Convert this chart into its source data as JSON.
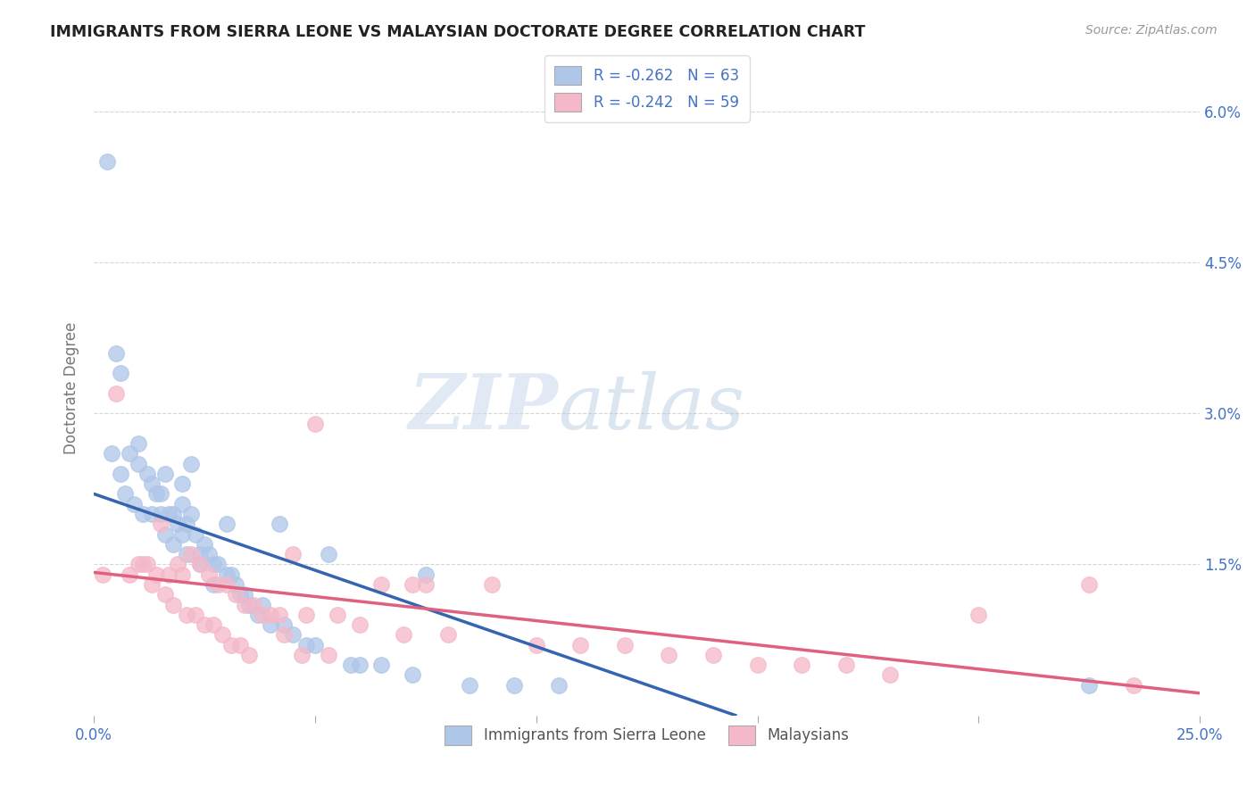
{
  "title": "IMMIGRANTS FROM SIERRA LEONE VS MALAYSIAN DOCTORATE DEGREE CORRELATION CHART",
  "source": "Source: ZipAtlas.com",
  "ylabel": "Doctorate Degree",
  "legend_label1": "Immigrants from Sierra Leone",
  "legend_label2": "Malaysians",
  "R1": -0.262,
  "N1": 63,
  "R2": -0.242,
  "N2": 59,
  "color_blue": "#aec6e8",
  "color_blue_line": "#3565b0",
  "color_pink": "#f4b8c8",
  "color_pink_line": "#e06080",
  "color_text": "#4472c4",
  "background": "#ffffff",
  "watermark_zip": "ZIP",
  "watermark_atlas": "atlas",
  "xlim": [
    0,
    25
  ],
  "ylim": [
    0,
    6.5
  ],
  "ytick_positions": [
    0.0,
    1.5,
    3.0,
    4.5,
    6.0
  ],
  "ytick_labels": [
    "",
    "1.5%",
    "3.0%",
    "4.5%",
    "6.0%"
  ],
  "xtick_positions": [
    0,
    5,
    10,
    15,
    20,
    25
  ],
  "xtick_labels": [
    "0.0%",
    "",
    "",
    "",
    "",
    "25.0%"
  ],
  "blue_x": [
    0.3,
    0.5,
    0.6,
    0.8,
    1.0,
    1.0,
    1.2,
    1.3,
    1.4,
    1.5,
    1.5,
    1.6,
    1.7,
    1.8,
    1.9,
    2.0,
    2.0,
    2.0,
    2.1,
    2.2,
    2.2,
    2.3,
    2.4,
    2.5,
    2.6,
    2.7,
    2.8,
    3.0,
    3.0,
    3.1,
    3.2,
    3.3,
    3.5,
    3.7,
    4.0,
    4.2,
    4.5,
    4.8,
    5.0,
    5.3,
    5.8,
    6.0,
    6.5,
    7.2,
    7.5,
    8.5,
    9.5,
    10.5,
    0.4,
    0.6,
    0.7,
    0.9,
    1.1,
    1.3,
    1.6,
    1.8,
    2.1,
    2.4,
    2.7,
    3.4,
    3.8,
    4.3,
    22.5
  ],
  "blue_y": [
    5.5,
    3.6,
    3.4,
    2.6,
    2.7,
    2.5,
    2.4,
    2.3,
    2.2,
    2.2,
    2.0,
    2.4,
    2.0,
    2.0,
    1.9,
    2.3,
    2.1,
    1.8,
    1.9,
    2.5,
    2.0,
    1.8,
    1.6,
    1.7,
    1.6,
    1.5,
    1.5,
    1.9,
    1.4,
    1.4,
    1.3,
    1.2,
    1.1,
    1.0,
    0.9,
    1.9,
    0.8,
    0.7,
    0.7,
    1.6,
    0.5,
    0.5,
    0.5,
    0.4,
    1.4,
    0.3,
    0.3,
    0.3,
    2.6,
    2.4,
    2.2,
    2.1,
    2.0,
    2.0,
    1.8,
    1.7,
    1.6,
    1.5,
    1.3,
    1.2,
    1.1,
    0.9,
    0.3
  ],
  "pink_x": [
    0.2,
    0.5,
    0.8,
    1.0,
    1.2,
    1.4,
    1.5,
    1.7,
    1.9,
    2.0,
    2.2,
    2.4,
    2.6,
    2.8,
    3.0,
    3.2,
    3.4,
    3.6,
    3.8,
    4.0,
    4.2,
    4.5,
    4.8,
    5.0,
    5.5,
    6.0,
    6.5,
    7.0,
    7.5,
    8.0,
    9.0,
    10.0,
    11.0,
    12.0,
    13.0,
    14.0,
    15.0,
    16.0,
    17.0,
    18.0,
    20.0,
    22.5,
    23.5,
    1.1,
    1.3,
    1.6,
    1.8,
    2.1,
    2.3,
    2.5,
    2.7,
    2.9,
    3.1,
    3.3,
    3.5,
    4.3,
    4.7,
    5.3,
    7.2
  ],
  "pink_y": [
    1.4,
    3.2,
    1.4,
    1.5,
    1.5,
    1.4,
    1.9,
    1.4,
    1.5,
    1.4,
    1.6,
    1.5,
    1.4,
    1.3,
    1.3,
    1.2,
    1.1,
    1.1,
    1.0,
    1.0,
    1.0,
    1.6,
    1.0,
    2.9,
    1.0,
    0.9,
    1.3,
    0.8,
    1.3,
    0.8,
    1.3,
    0.7,
    0.7,
    0.7,
    0.6,
    0.6,
    0.5,
    0.5,
    0.5,
    0.4,
    1.0,
    1.3,
    0.3,
    1.5,
    1.3,
    1.2,
    1.1,
    1.0,
    1.0,
    0.9,
    0.9,
    0.8,
    0.7,
    0.7,
    0.6,
    0.8,
    0.6,
    0.6,
    1.3
  ],
  "blue_line_x0": 0.0,
  "blue_line_y0": 2.2,
  "blue_line_x1": 14.5,
  "blue_line_y1": 0.0,
  "pink_line_x0": 0.0,
  "pink_line_y0": 1.42,
  "pink_line_x1": 25.0,
  "pink_line_y1": 0.22
}
